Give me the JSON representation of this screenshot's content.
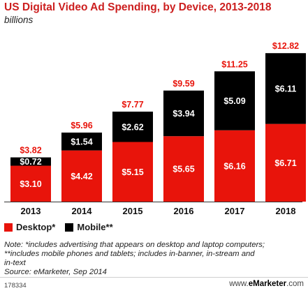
{
  "chart_data": {
    "type": "bar",
    "stacked": true,
    "title": "US Digital Video Ad Spending, by Device, 2013-2018",
    "subtitle": "billions",
    "categories": [
      "2013",
      "2014",
      "2015",
      "2016",
      "2017",
      "2018"
    ],
    "series": [
      {
        "name": "Desktop*",
        "color": "#e8140b",
        "values": [
          3.1,
          4.42,
          5.15,
          5.65,
          6.16,
          6.71
        ],
        "labels": [
          "$3.10",
          "$4.42",
          "$5.15",
          "$5.65",
          "$6.16",
          "$6.71"
        ]
      },
      {
        "name": "Mobile**",
        "color": "#000000",
        "values": [
          0.72,
          1.54,
          2.62,
          3.94,
          5.09,
          6.11
        ],
        "labels": [
          "$0.72",
          "$1.54",
          "$2.62",
          "$3.94",
          "$5.09",
          "$6.11"
        ]
      }
    ],
    "totals": [
      3.82,
      5.96,
      7.77,
      9.59,
      11.25,
      12.82
    ],
    "total_labels": [
      "$3.82",
      "$5.96",
      "$7.77",
      "$9.59",
      "$11.25",
      "$12.82"
    ],
    "total_label_color": "#e8140b",
    "ylim": [
      0,
      13
    ],
    "grid": false,
    "legend": "bottom-left"
  },
  "notes": {
    "line1": "Note: *includes advertising that appears on desktop and laptop computers;",
    "line2": "**includes mobile phones and tablets; includes in-banner, in-stream and",
    "line3": "in-text",
    "source": "Source: eMarketer, Sep 2014"
  },
  "footer": {
    "chart_id": "178334",
    "brand_prefix": "www.",
    "brand_name": "eMarketer",
    "brand_suffix": ".com"
  }
}
